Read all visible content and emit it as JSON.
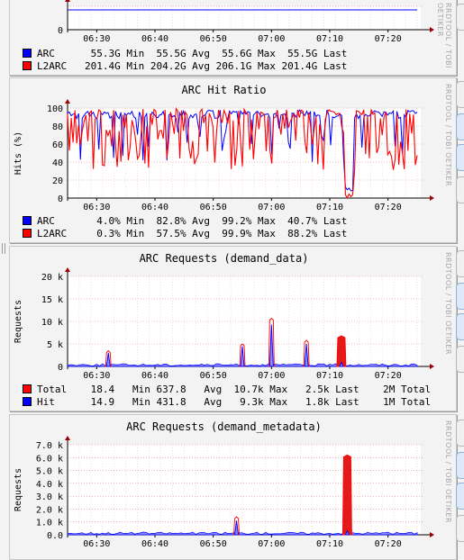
{
  "watermark": "RRDTOOL / TOBI OETIKER",
  "colors": {
    "blue": "#0000ff",
    "red": "#ff0000",
    "redFill": "#e21a1a",
    "blueFill": "#8c8cff",
    "grid": "#e0a0a0"
  },
  "x_ticks": [
    "06:30",
    "06:40",
    "06:50",
    "07:00",
    "07:10",
    "07:20"
  ],
  "chart_data": [
    {
      "type": "line",
      "title": "",
      "ylabel": "",
      "y_ticks": [
        "0"
      ],
      "ylim": [
        0,
        60
      ],
      "series": [
        {
          "name": "ARC",
          "color": "#0000ff",
          "values": [
            55.5,
            55.5
          ]
        }
      ],
      "legend": [
        {
          "name": "ARC",
          "color": "#0000ff",
          "text": "ARC      55.3G Min  55.5G Avg  55.6G Max  55.5G Last"
        },
        {
          "name": "L2ARC",
          "color": "#ff0000",
          "text": "L2ARC   201.4G Min 204.2G Avg 206.1G Max 201.4G Last"
        }
      ]
    },
    {
      "type": "line",
      "title": "ARC Hit Ratio",
      "ylabel": "Hits (%)",
      "y_ticks": [
        "100",
        "80",
        "60",
        "40",
        "20",
        "0"
      ],
      "ylim": [
        0,
        100
      ],
      "series": [
        {
          "name": "ARC",
          "color": "#0000ff",
          "min": 4.0,
          "avg": 82.8,
          "max": 99.2,
          "last": 40.7
        },
        {
          "name": "L2ARC",
          "color": "#ff0000",
          "min": 0.3,
          "avg": 57.5,
          "max": 99.9,
          "last": 88.2
        }
      ],
      "legend": [
        {
          "name": "ARC",
          "color": "#0000ff",
          "text": "ARC       4.0% Min  82.8% Avg  99.2% Max  40.7% Last"
        },
        {
          "name": "L2ARC",
          "color": "#ff0000",
          "text": "L2ARC     0.3% Min  57.5% Avg  99.9% Max  88.2% Last"
        }
      ]
    },
    {
      "type": "area",
      "title": "ARC Requests (demand_data)",
      "ylabel": "Requests",
      "y_ticks": [
        "20 k",
        "15 k",
        "10 k",
        "5 k",
        "0"
      ],
      "ylim": [
        0,
        20000
      ],
      "spikes": [
        {
          "x": "06:32",
          "total": 3500,
          "hit": 3000
        },
        {
          "x": "06:55",
          "total": 5000,
          "hit": 4500
        },
        {
          "x": "07:00",
          "total": 10700,
          "hit": 9300
        },
        {
          "x": "07:06",
          "total": 5800,
          "hit": 5000
        },
        {
          "x": "07:12",
          "total": 6800,
          "hit": 900
        }
      ],
      "legend": [
        {
          "name": "Total",
          "color": "#ff0000",
          "text": "Total    18.4   Min 637.8   Avg  10.7k Max   2.5k Last    2M Total"
        },
        {
          "name": "Hit",
          "color": "#0000ff",
          "text": "Hit      14.9   Min 431.8   Avg   9.3k Max   1.8k Last    1M Total"
        }
      ]
    },
    {
      "type": "area",
      "title": "ARC Requests (demand_metadata)",
      "ylabel": "Requests",
      "y_ticks": [
        "7.0 k",
        "6.0 k",
        "5.0 k",
        "4.0 k",
        "3.0 k",
        "2.0 k",
        "1.0 k",
        "0.0"
      ],
      "ylim": [
        0,
        7000
      ],
      "spikes": [
        {
          "x": "06:54",
          "total": 1400,
          "hit": 1100
        },
        {
          "x": "07:13",
          "total": 6200,
          "hit": 300
        }
      ]
    }
  ]
}
